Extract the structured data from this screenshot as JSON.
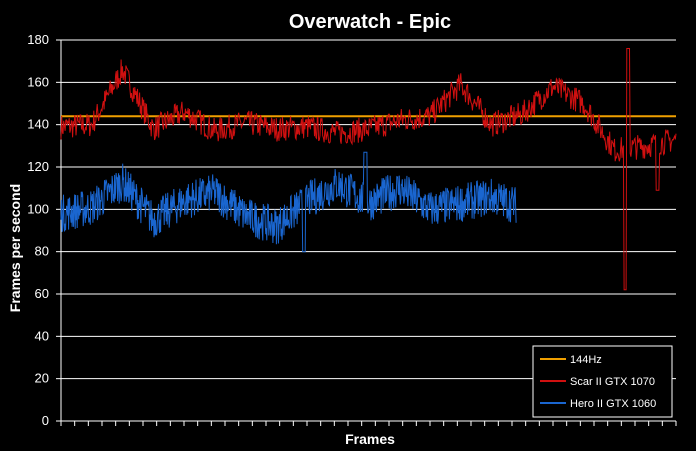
{
  "chart_data": {
    "type": "line",
    "title": "Overwatch - Epic",
    "xlabel": "Frames",
    "ylabel": "Frames per second",
    "ylim": [
      0,
      180
    ],
    "yticks": [
      "0",
      "20",
      "40",
      "60",
      "80",
      "100",
      "120",
      "140",
      "160",
      "180"
    ],
    "grid": "horizontal",
    "legend_position": "bottom-right",
    "x": [
      0,
      0.05,
      0.1,
      0.15,
      0.2,
      0.25,
      0.3,
      0.35,
      0.4,
      0.45,
      0.5,
      0.55,
      0.6,
      0.65,
      0.7,
      0.75,
      0.8,
      0.85,
      0.9,
      0.95,
      1.0
    ],
    "series": [
      {
        "name": "144Hz",
        "color": "#f0a000",
        "x": [
          0,
          1.0
        ],
        "values": [
          144,
          144
        ]
      },
      {
        "name": "Scar II GTX 1070",
        "color": "#d01010",
        "values": [
          139,
          140,
          166,
          138,
          146,
          137,
          141,
          138,
          139,
          136,
          138,
          142,
          144,
          159,
          140,
          145,
          158,
          150,
          128,
          130,
          133
        ]
      },
      {
        "name": "Hero II GTX 1060",
        "color": "#1a66d0",
        "x": [
          0,
          0.05,
          0.1,
          0.15,
          0.2,
          0.25,
          0.3,
          0.35,
          0.4,
          0.45,
          0.5,
          0.55,
          0.6,
          0.65,
          0.7,
          0.74
        ],
        "values": [
          98,
          101,
          113,
          95,
          104,
          108,
          97,
          92,
          104,
          112,
          103,
          110,
          100,
          103,
          106,
          102
        ]
      }
    ]
  }
}
